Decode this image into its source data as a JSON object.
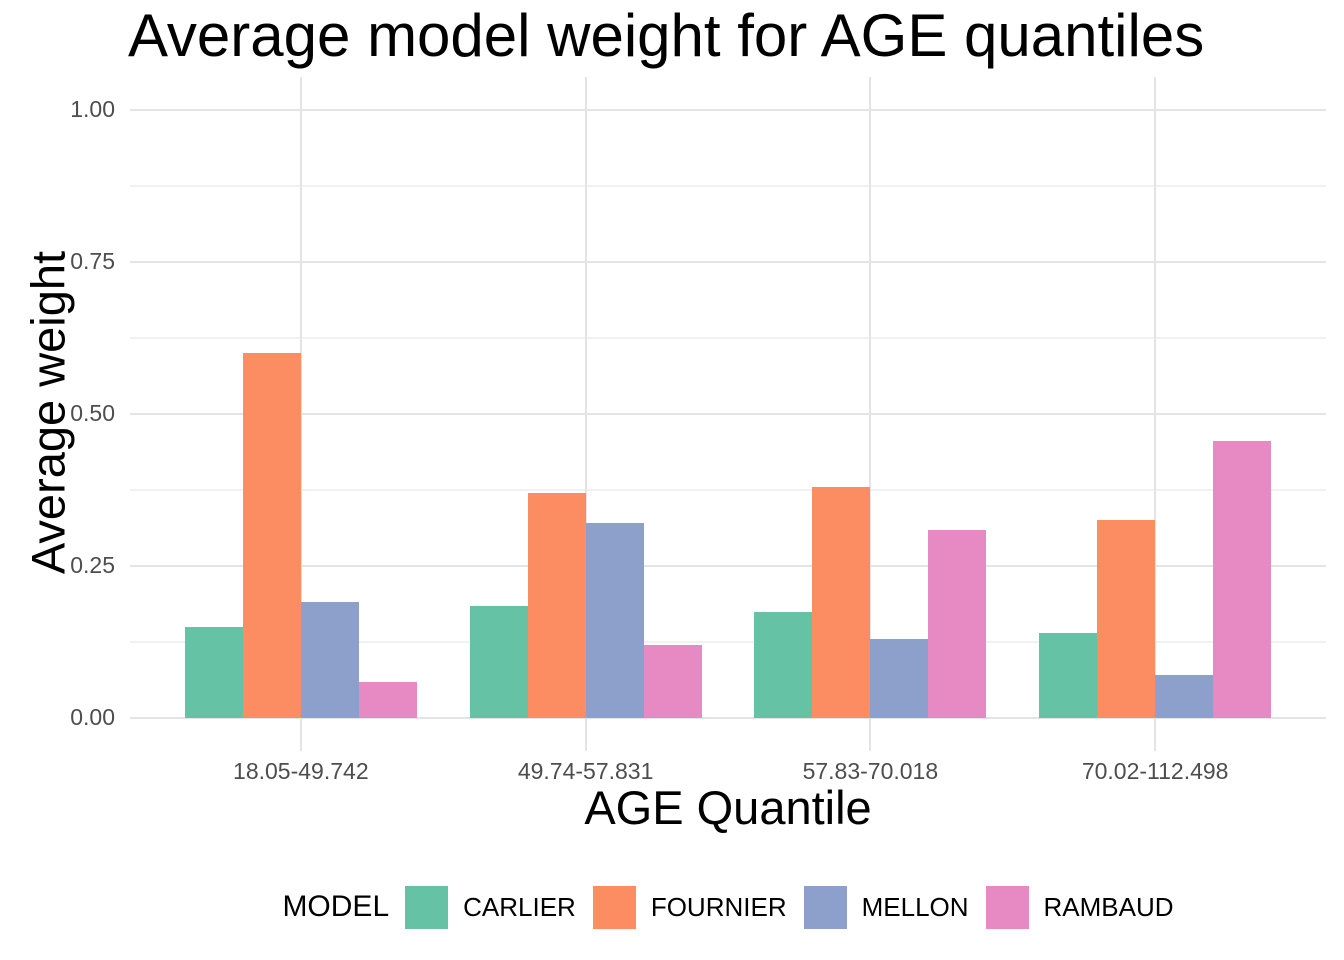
{
  "chart_data": {
    "type": "bar",
    "bar_mode": "grouped",
    "title": "Average model weight for AGE quantiles",
    "xlabel": "AGE Quantile",
    "ylabel": "Average weight",
    "categories": [
      "18.05-49.742",
      "49.74-57.831",
      "57.83-70.018",
      "70.02-112.498"
    ],
    "series": [
      {
        "name": "CARLIER",
        "color": "#66C2A5",
        "values": [
          0.15,
          0.185,
          0.175,
          0.14
        ]
      },
      {
        "name": "FOURNIER",
        "color": "#FC8D62",
        "values": [
          0.6,
          0.37,
          0.38,
          0.325
        ]
      },
      {
        "name": "MELLON",
        "color": "#8DA0CB",
        "values": [
          0.19,
          0.32,
          0.13,
          0.07
        ]
      },
      {
        "name": "RAMBAUD",
        "color": "#E78AC3",
        "values": [
          0.06,
          0.12,
          0.31,
          0.455
        ]
      }
    ],
    "ylim": [
      0,
      1
    ],
    "ytick_values": [
      0,
      0.25,
      0.5,
      0.75,
      1.0
    ],
    "ytick_labels": [
      "0.00",
      "0.25",
      "0.50",
      "0.75",
      "1.00"
    ],
    "minor_tick_values": [
      0.125,
      0.375,
      0.625,
      0.875
    ],
    "grid": true,
    "legend_title": "MODEL",
    "legend_position": "bottom",
    "background_color": "#FFFFFF",
    "tick_text_color": "#4D4D4D"
  }
}
